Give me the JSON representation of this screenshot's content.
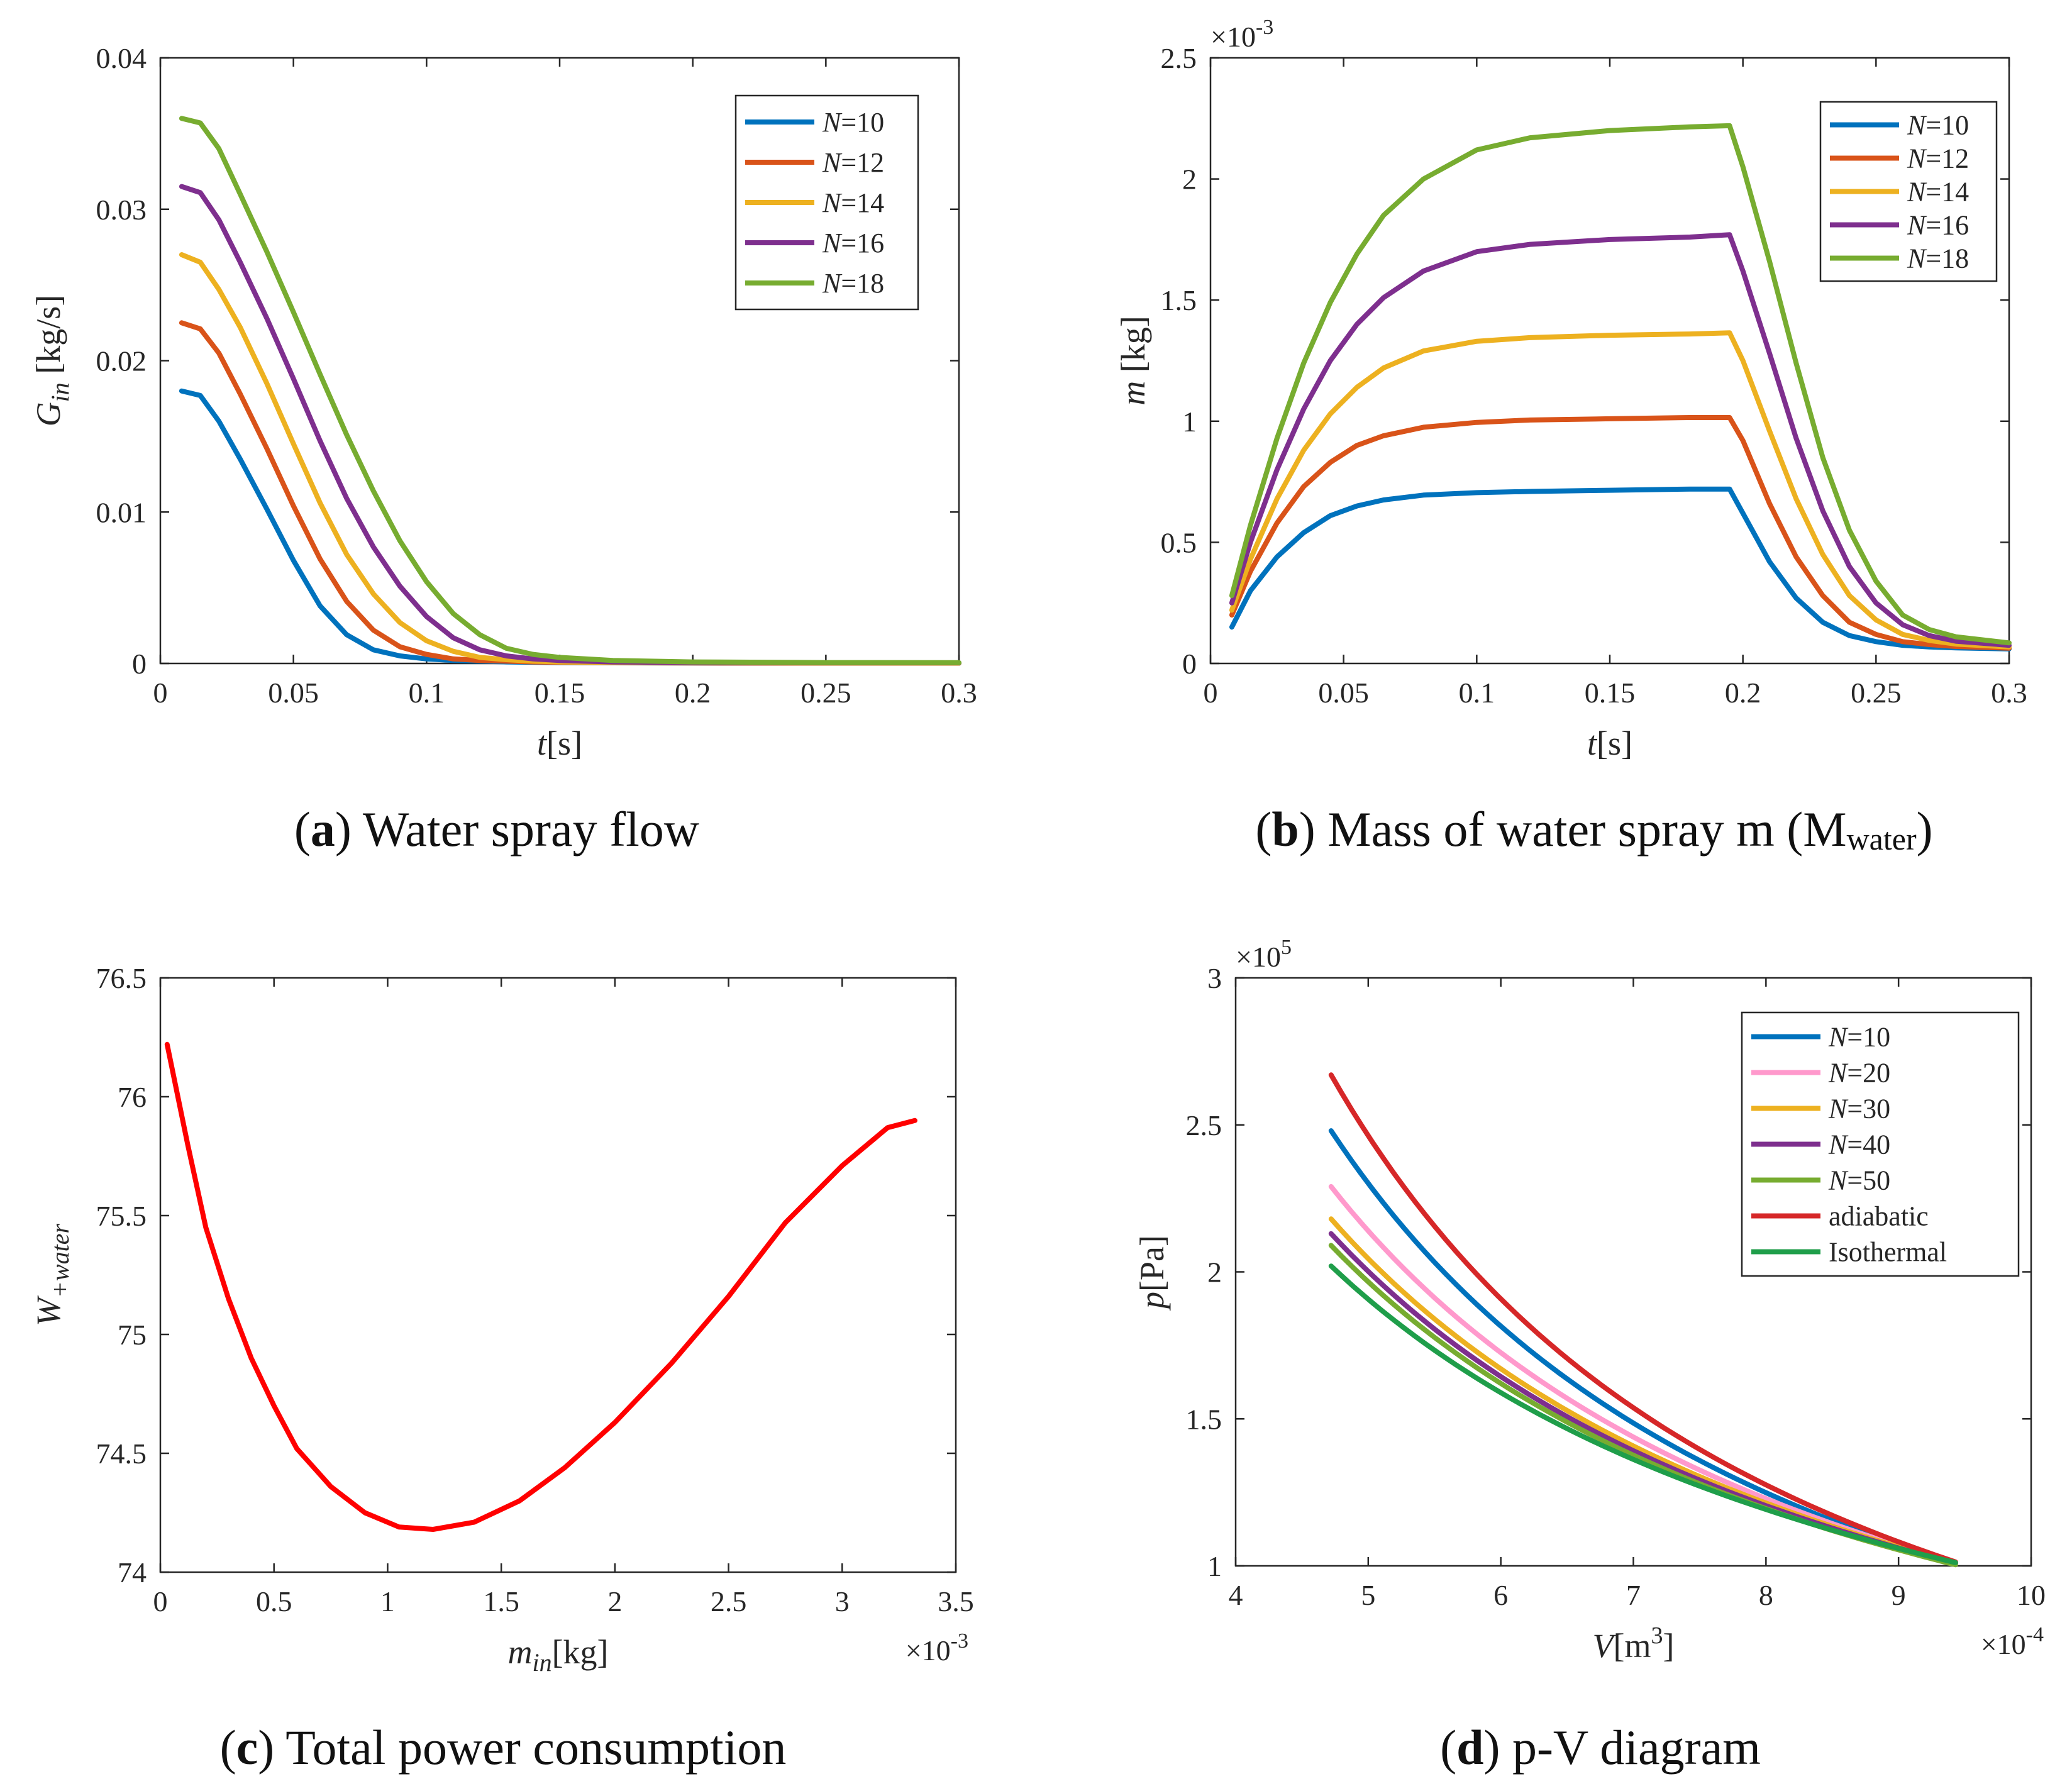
{
  "chart_data": [
    {
      "id": "a",
      "type": "line",
      "caption": {
        "letter": "a",
        "text": "Water spray flow"
      },
      "ylabel": {
        "main": "G",
        "sub": "in",
        "unit": " [kg/s]"
      },
      "xlabel": {
        "main": "t",
        "unit": "[s]"
      },
      "xlim": [
        0,
        0.3
      ],
      "ylim": [
        0,
        0.04
      ],
      "xticks": [
        0,
        0.05,
        0.1,
        0.15,
        0.2,
        0.25,
        0.3
      ],
      "xtick_labels": [
        "0",
        "0.05",
        "0.1",
        "0.15",
        "0.2",
        "0.25",
        "0.3"
      ],
      "yticks": [
        0,
        0.01,
        0.02,
        0.03,
        0.04
      ],
      "ytick_labels": [
        "0",
        "0.01",
        "0.02",
        "0.03",
        "0.04"
      ],
      "legend_position": "top-right",
      "series": [
        {
          "name": "N=10",
          "var": "N",
          "rest": "=10",
          "color": "#0072BD",
          "x": [
            0.008,
            0.015,
            0.022,
            0.03,
            0.04,
            0.05,
            0.06,
            0.07,
            0.08,
            0.09,
            0.1,
            0.11,
            0.12,
            0.13,
            0.14,
            0.15,
            0.17,
            0.2,
            0.25,
            0.3
          ],
          "y": [
            0.018,
            0.0177,
            0.016,
            0.0135,
            0.0102,
            0.0068,
            0.0038,
            0.0019,
            0.0009,
            0.0005,
            0.0003,
            0.0002,
            0.00015,
            0.0001,
            8e-05,
            6e-05,
            4e-05,
            3e-05,
            2e-05,
            2e-05
          ]
        },
        {
          "name": "N=12",
          "var": "N",
          "rest": "=12",
          "color": "#D95319",
          "x": [
            0.008,
            0.015,
            0.022,
            0.03,
            0.04,
            0.05,
            0.06,
            0.07,
            0.08,
            0.09,
            0.1,
            0.11,
            0.12,
            0.13,
            0.14,
            0.15,
            0.17,
            0.2,
            0.25,
            0.3
          ],
          "y": [
            0.0225,
            0.0221,
            0.0205,
            0.0178,
            0.0142,
            0.0104,
            0.0069,
            0.0041,
            0.0022,
            0.0011,
            0.0006,
            0.0003,
            0.0002,
            0.00015,
            0.0001,
            8e-05,
            5e-05,
            3e-05,
            2e-05,
            2e-05
          ]
        },
        {
          "name": "N=14",
          "var": "N",
          "rest": "=14",
          "color": "#EDB120",
          "x": [
            0.008,
            0.015,
            0.022,
            0.03,
            0.04,
            0.05,
            0.06,
            0.07,
            0.08,
            0.09,
            0.1,
            0.11,
            0.12,
            0.13,
            0.14,
            0.15,
            0.17,
            0.2,
            0.25,
            0.3
          ],
          "y": [
            0.027,
            0.0265,
            0.0247,
            0.0222,
            0.0185,
            0.0145,
            0.0106,
            0.0072,
            0.0046,
            0.0027,
            0.0015,
            0.0008,
            0.0004,
            0.00025,
            0.00015,
            0.0001,
            6e-05,
            4e-05,
            3e-05,
            3e-05
          ]
        },
        {
          "name": "N=16",
          "var": "N",
          "rest": "=16",
          "color": "#7E2F8E",
          "x": [
            0.008,
            0.015,
            0.022,
            0.03,
            0.04,
            0.05,
            0.06,
            0.07,
            0.08,
            0.09,
            0.1,
            0.11,
            0.12,
            0.13,
            0.14,
            0.15,
            0.17,
            0.2,
            0.25,
            0.3
          ],
          "y": [
            0.0315,
            0.0311,
            0.0293,
            0.0265,
            0.0228,
            0.0188,
            0.0147,
            0.0109,
            0.0077,
            0.0051,
            0.0031,
            0.0017,
            0.0009,
            0.0005,
            0.0003,
            0.0002,
            0.0001,
            6e-05,
            4e-05,
            4e-05
          ]
        },
        {
          "name": "N=18",
          "var": "N",
          "rest": "=18",
          "color": "#77AC30",
          "x": [
            0.008,
            0.015,
            0.022,
            0.03,
            0.04,
            0.05,
            0.06,
            0.07,
            0.08,
            0.09,
            0.1,
            0.11,
            0.12,
            0.13,
            0.14,
            0.15,
            0.17,
            0.2,
            0.25,
            0.3
          ],
          "y": [
            0.036,
            0.0357,
            0.034,
            0.031,
            0.0272,
            0.0232,
            0.0191,
            0.0151,
            0.0114,
            0.0081,
            0.0054,
            0.0033,
            0.0019,
            0.001,
            0.0006,
            0.0004,
            0.0002,
            0.0001,
            6e-05,
            5e-05
          ]
        }
      ]
    },
    {
      "id": "b",
      "type": "line",
      "caption": {
        "letter": "b",
        "text": "Mass of water spray m (M",
        "sub": "water",
        "close": ")"
      },
      "ylabel": {
        "main": "m",
        "unit": " [kg]"
      },
      "xlabel": {
        "main": "t",
        "unit": "[s]"
      },
      "exponent": {
        "base": "×10",
        "power": "-3",
        "position": "top-left"
      },
      "xlim": [
        0,
        0.3
      ],
      "ylim": [
        0,
        2.5
      ],
      "xticks": [
        0,
        0.05,
        0.1,
        0.15,
        0.2,
        0.25,
        0.3
      ],
      "xtick_labels": [
        "0",
        "0.05",
        "0.1",
        "0.15",
        "0.2",
        "0.25",
        "0.3"
      ],
      "yticks": [
        0,
        0.5,
        1,
        1.5,
        2,
        2.5
      ],
      "ytick_labels": [
        "0",
        "0.5",
        "1",
        "1.5",
        "2",
        "2.5"
      ],
      "legend_position": "top-right",
      "series": [
        {
          "name": "N=10",
          "var": "N",
          "rest": "=10",
          "color": "#0072BD",
          "x": [
            0.008,
            0.015,
            0.025,
            0.035,
            0.045,
            0.055,
            0.065,
            0.08,
            0.1,
            0.12,
            0.15,
            0.18,
            0.195,
            0.2,
            0.21,
            0.22,
            0.23,
            0.24,
            0.25,
            0.26,
            0.27,
            0.28,
            0.3
          ],
          "y": [
            0.15,
            0.3,
            0.44,
            0.54,
            0.61,
            0.65,
            0.675,
            0.695,
            0.705,
            0.71,
            0.715,
            0.72,
            0.72,
            0.62,
            0.42,
            0.27,
            0.17,
            0.115,
            0.09,
            0.075,
            0.068,
            0.064,
            0.06
          ]
        },
        {
          "name": "N=12",
          "var": "N",
          "rest": "=12",
          "color": "#D95319",
          "x": [
            0.008,
            0.015,
            0.025,
            0.035,
            0.045,
            0.055,
            0.065,
            0.08,
            0.1,
            0.12,
            0.15,
            0.18,
            0.195,
            0.2,
            0.21,
            0.22,
            0.23,
            0.24,
            0.25,
            0.26,
            0.27,
            0.28,
            0.3
          ],
          "y": [
            0.2,
            0.38,
            0.58,
            0.73,
            0.83,
            0.9,
            0.94,
            0.975,
            0.995,
            1.005,
            1.01,
            1.015,
            1.015,
            0.92,
            0.66,
            0.44,
            0.28,
            0.17,
            0.12,
            0.09,
            0.078,
            0.07,
            0.063
          ]
        },
        {
          "name": "N=14",
          "var": "N",
          "rest": "=14",
          "color": "#EDB120",
          "x": [
            0.008,
            0.015,
            0.025,
            0.035,
            0.045,
            0.055,
            0.065,
            0.08,
            0.1,
            0.12,
            0.15,
            0.18,
            0.195,
            0.2,
            0.21,
            0.22,
            0.23,
            0.24,
            0.25,
            0.26,
            0.27,
            0.28,
            0.3
          ],
          "y": [
            0.22,
            0.43,
            0.68,
            0.88,
            1.03,
            1.14,
            1.22,
            1.29,
            1.33,
            1.345,
            1.355,
            1.36,
            1.365,
            1.25,
            0.96,
            0.68,
            0.45,
            0.28,
            0.18,
            0.12,
            0.095,
            0.08,
            0.068
          ]
        },
        {
          "name": "N=16",
          "var": "N",
          "rest": "=16",
          "color": "#7E2F8E",
          "x": [
            0.008,
            0.015,
            0.025,
            0.035,
            0.045,
            0.055,
            0.065,
            0.08,
            0.1,
            0.12,
            0.15,
            0.18,
            0.195,
            0.2,
            0.21,
            0.22,
            0.23,
            0.24,
            0.25,
            0.26,
            0.27,
            0.28,
            0.3
          ],
          "y": [
            0.25,
            0.5,
            0.8,
            1.05,
            1.25,
            1.4,
            1.51,
            1.62,
            1.7,
            1.73,
            1.75,
            1.76,
            1.77,
            1.62,
            1.28,
            0.93,
            0.63,
            0.4,
            0.25,
            0.16,
            0.115,
            0.092,
            0.075
          ]
        },
        {
          "name": "N=18",
          "var": "N",
          "rest": "=18",
          "color": "#77AC30",
          "x": [
            0.008,
            0.015,
            0.025,
            0.035,
            0.045,
            0.055,
            0.065,
            0.08,
            0.1,
            0.12,
            0.15,
            0.18,
            0.195,
            0.2,
            0.21,
            0.22,
            0.23,
            0.24,
            0.25,
            0.26,
            0.27,
            0.28,
            0.3
          ],
          "y": [
            0.28,
            0.57,
            0.93,
            1.24,
            1.49,
            1.69,
            1.85,
            2.0,
            2.12,
            2.17,
            2.2,
            2.215,
            2.22,
            2.05,
            1.66,
            1.24,
            0.85,
            0.55,
            0.34,
            0.2,
            0.14,
            0.11,
            0.085
          ]
        }
      ]
    },
    {
      "id": "c",
      "type": "line",
      "caption": {
        "letter": "c",
        "text": "Total power consumption"
      },
      "ylabel": {
        "main": "W",
        "sub": "+water",
        "unit": ""
      },
      "xlabel": {
        "main": "m",
        "sub": "in",
        "unit": "[kg]"
      },
      "exponent": {
        "base": "×10",
        "power": "-3",
        "position": "bottom-right"
      },
      "xlim": [
        0,
        3.5
      ],
      "ylim": [
        74,
        76.5
      ],
      "xticks": [
        0,
        0.5,
        1,
        1.5,
        2,
        2.5,
        3,
        3.5
      ],
      "xtick_labels": [
        "0",
        "0.5",
        "1",
        "1.5",
        "2",
        "2.5",
        "3",
        "3.5"
      ],
      "yticks": [
        74,
        74.5,
        75,
        75.5,
        76,
        76.5
      ],
      "ytick_labels": [
        "74",
        "74.5",
        "75",
        "75.5",
        "76",
        "76.5"
      ],
      "series": [
        {
          "name": "W",
          "color": "#FF0000",
          "x": [
            0.03,
            0.12,
            0.2,
            0.3,
            0.4,
            0.5,
            0.6,
            0.75,
            0.9,
            1.05,
            1.2,
            1.38,
            1.58,
            1.78,
            2.0,
            2.25,
            2.5,
            2.75,
            3.0,
            3.2,
            3.32
          ],
          "y": [
            76.22,
            75.8,
            75.45,
            75.15,
            74.9,
            74.7,
            74.52,
            74.36,
            74.25,
            74.19,
            74.18,
            74.21,
            74.3,
            74.44,
            74.63,
            74.88,
            75.16,
            75.47,
            75.71,
            75.87,
            75.9
          ]
        }
      ]
    },
    {
      "id": "d",
      "type": "line",
      "caption": {
        "letter": "d",
        "text": "p-V diagram"
      },
      "ylabel": {
        "main": "p",
        "unit": "[Pa]"
      },
      "xlabel": {
        "main": "V",
        "unit": "[m",
        "sup": "3",
        "close": "]"
      },
      "exponent_y": {
        "base": "×10",
        "power": "5",
        "position": "top-left"
      },
      "exponent_x": {
        "base": "×10",
        "power": "-4",
        "position": "bottom-right"
      },
      "xlim": [
        4,
        10
      ],
      "ylim": [
        1,
        3
      ],
      "xticks": [
        4,
        5,
        6,
        7,
        8,
        9,
        10
      ],
      "xtick_labels": [
        "4",
        "5",
        "6",
        "7",
        "8",
        "9",
        "10"
      ],
      "yticks": [
        1,
        1.5,
        2,
        2.5,
        3
      ],
      "ytick_labels": [
        "1",
        "1.5",
        "2",
        "2.5",
        "3"
      ],
      "legend_position": "top-right",
      "series": [
        {
          "name": "N=10",
          "var": "N",
          "rest": "=10",
          "color": "#0072BD",
          "start": [
            4.72,
            2.48
          ],
          "end": [
            9.43,
            1.01
          ],
          "exp": 1.3
        },
        {
          "name": "N=20",
          "var": "N",
          "rest": "=20",
          "color": "#FF99CC",
          "start": [
            4.72,
            2.29
          ],
          "end": [
            9.43,
            1.01
          ],
          "exp": 1.18
        },
        {
          "name": "N=30",
          "var": "N",
          "rest": "=30",
          "color": "#EDB120",
          "start": [
            4.72,
            2.18
          ],
          "end": [
            9.43,
            1.01
          ],
          "exp": 1.11
        },
        {
          "name": "N=40",
          "var": "N",
          "rest": "=40",
          "color": "#7E2F8E",
          "start": [
            4.72,
            2.13
          ],
          "end": [
            9.43,
            1.01
          ],
          "exp": 1.08
        },
        {
          "name": "N=50",
          "var": "N",
          "rest": "=50",
          "color": "#77AC30",
          "start": [
            4.72,
            2.09
          ],
          "end": [
            9.43,
            1.01
          ],
          "exp": 1.06
        },
        {
          "name": "adiabatic",
          "color": "#D62728",
          "start": [
            4.72,
            2.67
          ],
          "end": [
            9.43,
            1.01
          ],
          "exp": 1.4
        },
        {
          "name": "Isothermal",
          "color": "#1F9E4A",
          "start": [
            4.72,
            2.02
          ],
          "end": [
            9.43,
            1.01
          ],
          "exp": 1.0
        }
      ]
    }
  ]
}
